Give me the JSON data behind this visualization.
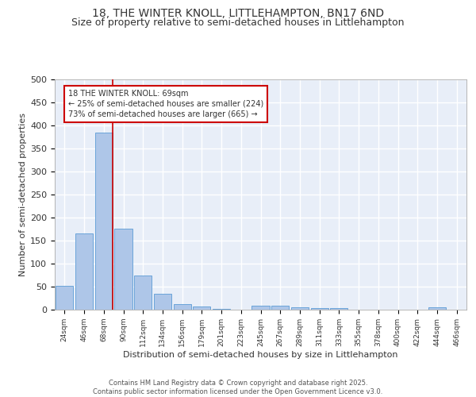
{
  "title_line1": "18, THE WINTER KNOLL, LITTLEHAMPTON, BN17 6ND",
  "title_line2": "Size of property relative to semi-detached houses in Littlehampton",
  "xlabel": "Distribution of semi-detached houses by size in Littlehampton",
  "ylabel": "Number of semi-detached properties",
  "categories": [
    "24sqm",
    "46sqm",
    "68sqm",
    "90sqm",
    "112sqm",
    "134sqm",
    "156sqm",
    "179sqm",
    "201sqm",
    "223sqm",
    "245sqm",
    "267sqm",
    "289sqm",
    "311sqm",
    "333sqm",
    "355sqm",
    "378sqm",
    "400sqm",
    "422sqm",
    "444sqm",
    "466sqm"
  ],
  "values": [
    51,
    165,
    385,
    176,
    75,
    34,
    12,
    7,
    2,
    0,
    8,
    8,
    5,
    3,
    3,
    0,
    0,
    0,
    0,
    5,
    0
  ],
  "bar_color": "#aec6e8",
  "bar_edge_color": "#5b9bd5",
  "vline_index": 2,
  "vline_color": "#cc0000",
  "annotation_text": "18 THE WINTER KNOLL: 69sqm\n← 25% of semi-detached houses are smaller (224)\n73% of semi-detached houses are larger (665) →",
  "annotation_box_color": "#ffffff",
  "annotation_box_edge": "#cc0000",
  "footer_text": "Contains HM Land Registry data © Crown copyright and database right 2025.\nContains public sector information licensed under the Open Government Licence v3.0.",
  "ylim": [
    0,
    500
  ],
  "yticks": [
    0,
    50,
    100,
    150,
    200,
    250,
    300,
    350,
    400,
    450,
    500
  ],
  "bg_color": "#e8eef8",
  "grid_color": "#ffffff",
  "title_fontsize": 10,
  "subtitle_fontsize": 9,
  "footer_fontsize": 6
}
